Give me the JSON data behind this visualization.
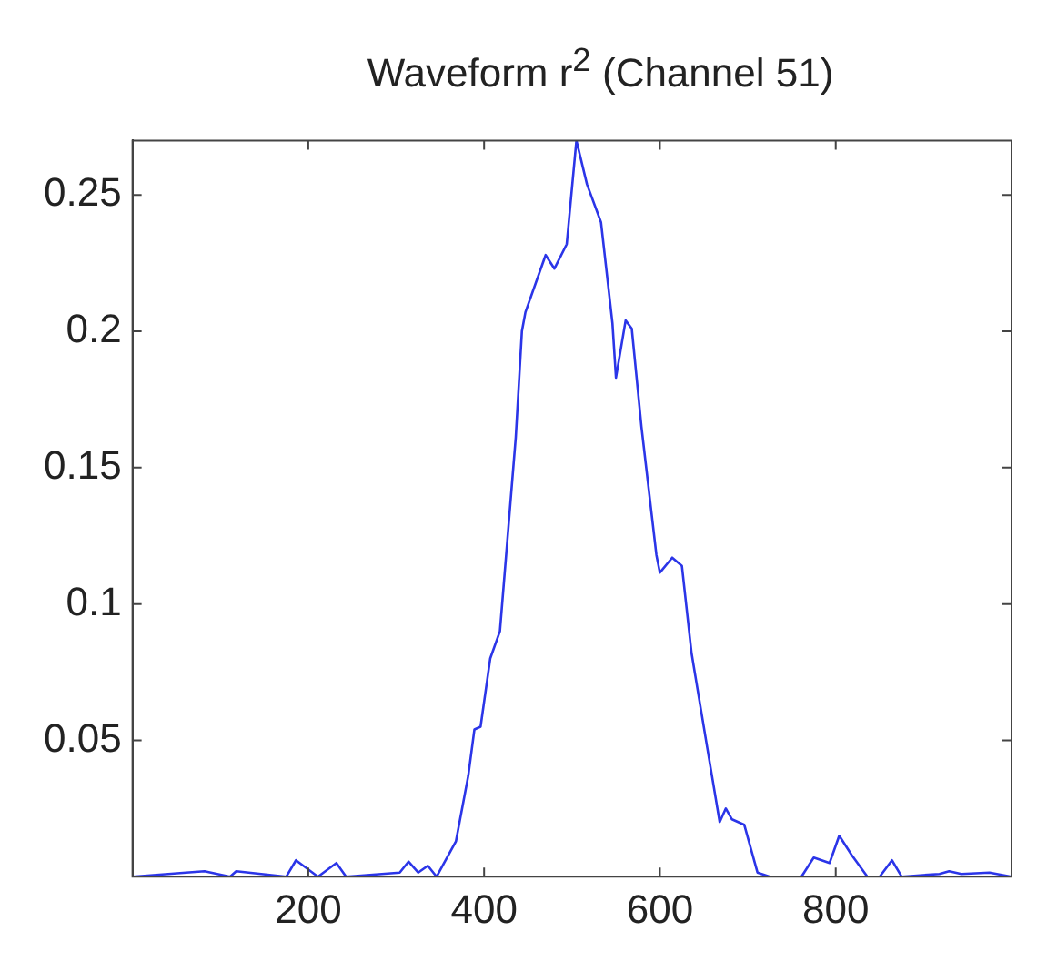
{
  "chart_data": {
    "type": "line",
    "title": "Waveform r$^{2}$ (Channel 51)",
    "xlim": [
      0,
      1000
    ],
    "xticks": [
      200,
      400,
      600,
      800
    ],
    "ylim": [
      0,
      0.27
    ],
    "yticks": [
      0.05,
      0.1,
      0.15,
      0.2,
      0.25
    ],
    "grid": false,
    "legend": false,
    "marker": "none",
    "line_style": "solid",
    "series": [
      {
        "color": "#2b35e8",
        "x": [
          0,
          61,
          82,
          111,
          118,
          175,
          186,
          211,
          232,
          243,
          304,
          314,
          325,
          336,
          346,
          368,
          382,
          389,
          396,
          407,
          418,
          436,
          443,
          447,
          470,
          480,
          494,
          505,
          517,
          533,
          546,
          550,
          561,
          568,
          579,
          596,
          600,
          614,
          625,
          636,
          654,
          668,
          675,
          682,
          696,
          711,
          725,
          761,
          775,
          793,
          804,
          818,
          836,
          850,
          864,
          875,
          918,
          929,
          943,
          975,
          1000
        ],
        "values": [
          0,
          0.0015,
          0.002,
          0,
          0.002,
          0,
          0.006,
          0,
          0.005,
          0,
          0.0015,
          0.0055,
          0.0015,
          0.004,
          0,
          0.013,
          0.037,
          0.054,
          0.055,
          0.08,
          0.09,
          0.161,
          0.2,
          0.207,
          0.228,
          0.223,
          0.232,
          0.27,
          0.254,
          0.24,
          0.203,
          0.183,
          0.204,
          0.201,
          0.165,
          0.118,
          0.1115,
          0.117,
          0.114,
          0.082,
          0.047,
          0.02,
          0.025,
          0.021,
          0.019,
          0.0015,
          0,
          0,
          0.007,
          0.005,
          0.015,
          0.008,
          0,
          0,
          0.006,
          0,
          0.001,
          0.002,
          0.001,
          0.0015,
          0
        ]
      }
    ]
  }
}
